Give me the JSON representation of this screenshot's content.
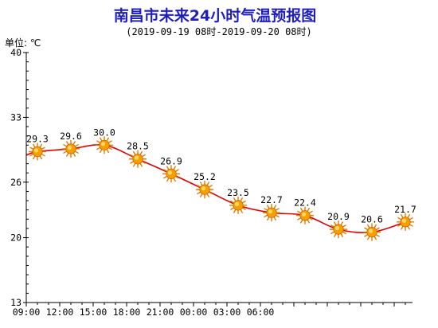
{
  "chart_data": {
    "type": "line",
    "title": "南昌市未来24小时气温预报图",
    "subtitle": "(2019-09-19 08时-2019-09-20 08时)",
    "unit_label": "单位: ℃",
    "x_tick_labels": [
      "09:00",
      "12:00",
      "15:00",
      "18:00",
      "21:00",
      "00:00",
      "03:00",
      "06:00"
    ],
    "y_ticks": [
      "40",
      "33",
      "26",
      "20",
      "13"
    ],
    "y_tick_values": [
      40,
      33,
      26,
      20,
      13
    ],
    "ylim": [
      13,
      40
    ],
    "series": [
      {
        "points": [
          {
            "hour": 10,
            "value": 29.3,
            "label": "29.3"
          },
          {
            "hour": 13,
            "value": 29.6,
            "label": "29.6"
          },
          {
            "hour": 16,
            "value": 30.0,
            "label": "30.0"
          },
          {
            "hour": 19,
            "value": 28.5,
            "label": "28.5"
          },
          {
            "hour": 22,
            "value": 26.9,
            "label": "26.9"
          },
          {
            "hour": 25,
            "value": 25.2,
            "label": "25.2"
          },
          {
            "hour": 28,
            "value": 23.5,
            "label": "23.5"
          },
          {
            "hour": 31,
            "value": 22.7,
            "label": "22.7"
          },
          {
            "hour": 34,
            "value": 22.4,
            "label": "22.4"
          },
          {
            "hour": 37,
            "value": 20.9,
            "label": "20.9"
          },
          {
            "hour": 40,
            "value": 20.6,
            "label": "20.6"
          },
          {
            "hour": 43,
            "value": 21.7,
            "label": "21.7"
          }
        ]
      }
    ],
    "line_color": "#e00000",
    "marker_icon": "sun-icon",
    "marker_color": "#f5a000"
  }
}
